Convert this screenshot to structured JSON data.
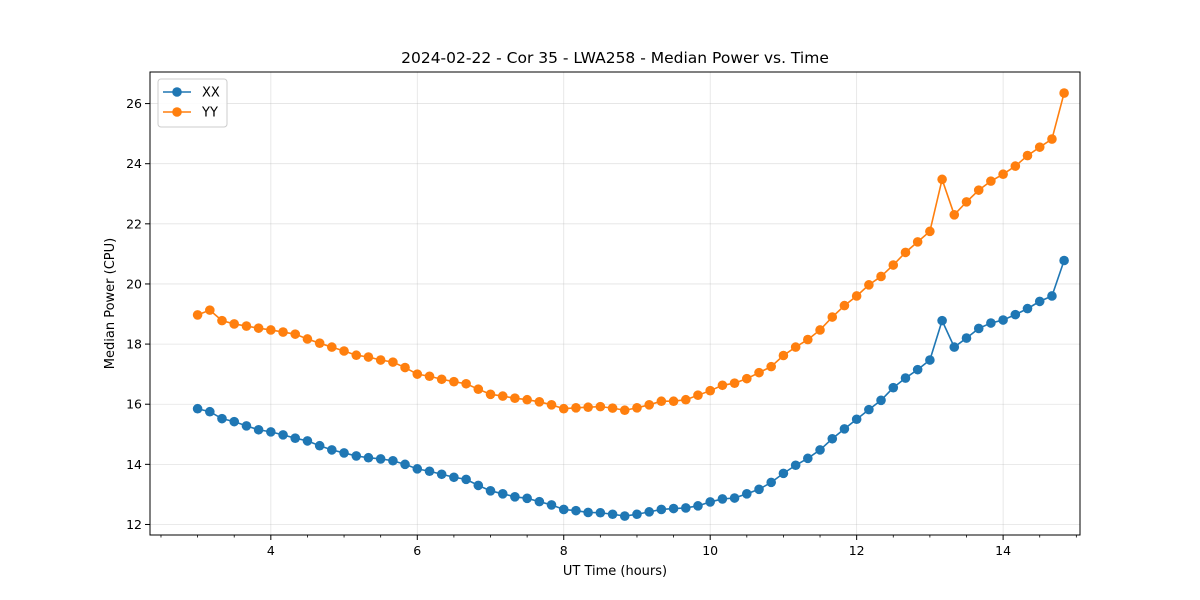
{
  "chart_data": {
    "type": "line",
    "title": "2024-02-22 - Cor 35 - LWA258 - Median Power vs. Time",
    "xlabel": "UT Time (hours)",
    "ylabel": "Median Power (CPU)",
    "xlim": [
      2.35,
      15.05
    ],
    "ylim": [
      11.65,
      27.05
    ],
    "xticks": [
      4,
      6,
      8,
      10,
      12,
      14
    ],
    "xtick_labels": [
      "4",
      "6",
      "8",
      "10",
      "12",
      "14"
    ],
    "yticks": [
      12,
      14,
      16,
      18,
      20,
      22,
      24,
      26
    ],
    "ytick_labels": [
      "12",
      "14",
      "16",
      "18",
      "20",
      "22",
      "24",
      "26"
    ],
    "grid": true,
    "legend_position": "top-left",
    "x": [
      3.0,
      3.167,
      3.333,
      3.5,
      3.667,
      3.833,
      4.0,
      4.167,
      4.333,
      4.5,
      4.667,
      4.833,
      5.0,
      5.167,
      5.333,
      5.5,
      5.667,
      5.833,
      6.0,
      6.167,
      6.333,
      6.5,
      6.667,
      6.833,
      7.0,
      7.167,
      7.333,
      7.5,
      7.667,
      7.833,
      8.0,
      8.167,
      8.333,
      8.5,
      8.667,
      8.833,
      9.0,
      9.167,
      9.333,
      9.5,
      9.667,
      9.833,
      10.0,
      10.167,
      10.333,
      10.5,
      10.667,
      10.833,
      11.0,
      11.167,
      11.333,
      11.5,
      11.667,
      11.833,
      12.0,
      12.167,
      12.333,
      12.5,
      12.667,
      12.833,
      13.0,
      13.167,
      13.333,
      13.5,
      13.667,
      13.833,
      14.0,
      14.167,
      14.333,
      14.5,
      14.667,
      14.833
    ],
    "series": [
      {
        "name": "XX",
        "color": "#1f77b4",
        "values": [
          15.85,
          15.75,
          15.52,
          15.42,
          15.28,
          15.15,
          15.08,
          14.98,
          14.87,
          14.78,
          14.62,
          14.48,
          14.38,
          14.28,
          14.22,
          14.18,
          14.12,
          14.0,
          13.85,
          13.77,
          13.67,
          13.57,
          13.5,
          13.3,
          13.12,
          13.02,
          12.92,
          12.87,
          12.76,
          12.65,
          12.5,
          12.46,
          12.4,
          12.39,
          12.34,
          12.28,
          12.34,
          12.42,
          12.5,
          12.53,
          12.55,
          12.62,
          12.75,
          12.85,
          12.88,
          13.02,
          13.17,
          13.4,
          13.7,
          13.97,
          14.2,
          14.48,
          14.85,
          15.18,
          15.5,
          15.82,
          16.13,
          16.55,
          16.87,
          17.15,
          17.47,
          18.78,
          17.9,
          18.2,
          18.52,
          18.7,
          18.8,
          18.98,
          19.18,
          19.42,
          19.6,
          20.78
        ]
      },
      {
        "name": "YY",
        "color": "#ff7f0e",
        "values": [
          18.97,
          19.13,
          18.78,
          18.67,
          18.6,
          18.53,
          18.47,
          18.4,
          18.33,
          18.17,
          18.03,
          17.9,
          17.77,
          17.63,
          17.57,
          17.47,
          17.4,
          17.22,
          17.0,
          16.93,
          16.83,
          16.75,
          16.68,
          16.5,
          16.33,
          16.27,
          16.2,
          16.15,
          16.08,
          15.98,
          15.85,
          15.88,
          15.9,
          15.92,
          15.87,
          15.8,
          15.88,
          15.98,
          16.1,
          16.1,
          16.15,
          16.3,
          16.45,
          16.63,
          16.7,
          16.85,
          17.05,
          17.25,
          17.62,
          17.9,
          18.15,
          18.47,
          18.9,
          19.28,
          19.6,
          19.97,
          20.25,
          20.63,
          21.05,
          21.4,
          21.75,
          23.48,
          22.3,
          22.73,
          23.12,
          23.42,
          23.65,
          23.92,
          24.27,
          24.55,
          24.82,
          26.35
        ]
      }
    ]
  }
}
